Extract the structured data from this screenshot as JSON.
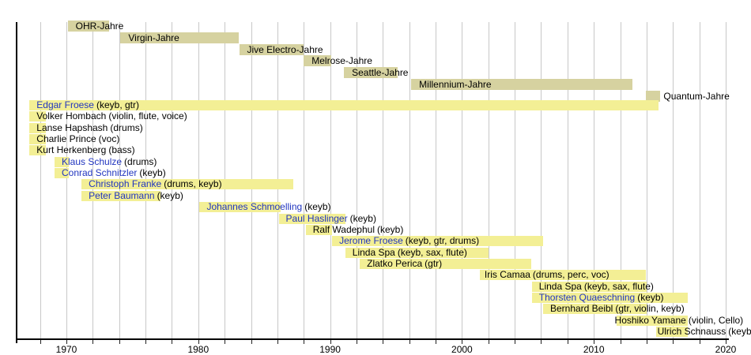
{
  "chart_data": {
    "type": "bar",
    "variant": "gantt-membership-timeline",
    "title": "",
    "background": "#ffffff",
    "x_axis": {
      "range_start": 1966.2,
      "range_end": 2022,
      "gridline_start": 1968,
      "gridline_end": 2020,
      "gridline_step_years": 2,
      "decade_tick_labels": [
        "1970",
        "1980",
        "1990",
        "2000",
        "2010",
        "2020"
      ],
      "decade_tick_years": [
        1970,
        1980,
        1990,
        2000,
        2010,
        2020
      ]
    },
    "eras": [
      {
        "label": "OHR-Jahre",
        "start": 1970.1,
        "end": 1973.25
      },
      {
        "label": "Virgin-Jahre",
        "start": 1974.1,
        "end": 1983.1
      },
      {
        "label": "Jive Electro-Jahre",
        "start": 1983.1,
        "end": 1988.0
      },
      {
        "label": "Melrose-Jahre",
        "start": 1988.0,
        "end": 1990.1
      },
      {
        "label": "Seattle-Jahre",
        "start": 1991.05,
        "end": 1995.15
      },
      {
        "label": "Millennium-Jahre",
        "start": 1996.15,
        "end": 2012.9
      },
      {
        "label": "Quantum-Jahre",
        "start": 2013.95,
        "end": 2015.05,
        "label_outside": true
      }
    ],
    "members": [
      {
        "name": "Edgar Froese",
        "detail": "(keyb, gtr)",
        "start": 1967.2,
        "end": 2014.9,
        "linked": true
      },
      {
        "name": "Volker Hombach",
        "detail": "(violin, flute, voice)",
        "start": 1967.2,
        "end": 1968.45,
        "linked": false
      },
      {
        "name": "Lanse Hapshash",
        "detail": "(drums)",
        "start": 1967.2,
        "end": 1968.45,
        "linked": false
      },
      {
        "name": "Charlie Prince",
        "detail": "(voc)",
        "start": 1967.2,
        "end": 1968.45,
        "linked": false
      },
      {
        "name": "Kurt Herkenberg",
        "detail": "(bass)",
        "start": 1967.2,
        "end": 1968.45,
        "linked": false
      },
      {
        "name": "Klaus Schulze",
        "detail": "(drums)",
        "start": 1969.1,
        "end": 1970.2,
        "linked": true
      },
      {
        "name": "Conrad Schnitzler",
        "detail": "(keyb)",
        "start": 1969.1,
        "end": 1970.2,
        "linked": true
      },
      {
        "name": "Christoph Franke",
        "detail": "(drums, keyb)",
        "start": 1971.15,
        "end": 1987.2,
        "linked": true
      },
      {
        "name": "Peter Baumann",
        "detail": "(keyb)",
        "start": 1971.15,
        "end": 1977.15,
        "linked": true
      },
      {
        "name": "Johannes Schmoelling",
        "detail": "(keyb)",
        "start": 1980.1,
        "end": 1986.25,
        "linked": true
      },
      {
        "name": "Paul Haslinger",
        "detail": "(keyb)",
        "start": 1986.1,
        "end": 1991.15,
        "linked": true
      },
      {
        "name": "Ralf Wadephul",
        "detail": "(keyb)",
        "start": 1988.15,
        "end": 1990.15,
        "linked": false
      },
      {
        "name": "Jerome Froese",
        "detail": "(keyb, gtr, drums)",
        "start": 1990.15,
        "end": 2006.15,
        "linked": true
      },
      {
        "name": "Linda Spa",
        "detail": "(keyb, sax, flute)",
        "start": 1991.15,
        "end": 2002.0,
        "linked": false
      },
      {
        "name": "Zlatko Perica",
        "detail": "(gtr)",
        "start": 1992.25,
        "end": 2005.25,
        "linked": false
      },
      {
        "name": "Iris Camaa",
        "detail": "(drums, perc, voc)",
        "start": 2001.35,
        "end": 2013.95,
        "linked": false,
        "label_dx": 6
      },
      {
        "name": "Linda Spa",
        "detail": "(keyb, sax, flute)",
        "start": 2005.3,
        "end": 2014.0,
        "linked": false
      },
      {
        "name": "Thorsten Quaeschning",
        "detail": "(keyb)",
        "start": 2005.3,
        "end": 2017.1,
        "linked": true
      },
      {
        "name": "Bernhard Beibl",
        "detail": "(gtr, violin, keyb)",
        "start": 2006.15,
        "end": 2014.0,
        "linked": false
      },
      {
        "name": "Hoshiko Yamane",
        "detail": "(violin, Cello)",
        "start": 2011.7,
        "end": 2017.1,
        "linked": false,
        "label_dx": -2
      },
      {
        "name": "Ulrich Schnauss",
        "detail": "(keyb)",
        "start": 2014.7,
        "end": 2017.1,
        "linked": false,
        "label_dx": 2
      }
    ],
    "colors": {
      "era_bar": "#d6d2a0",
      "member_bar": "#f3ef95",
      "linked_text": "#2135bf",
      "text": "#000000",
      "gridline": "#c8c8c8",
      "axis": "#000000"
    }
  }
}
